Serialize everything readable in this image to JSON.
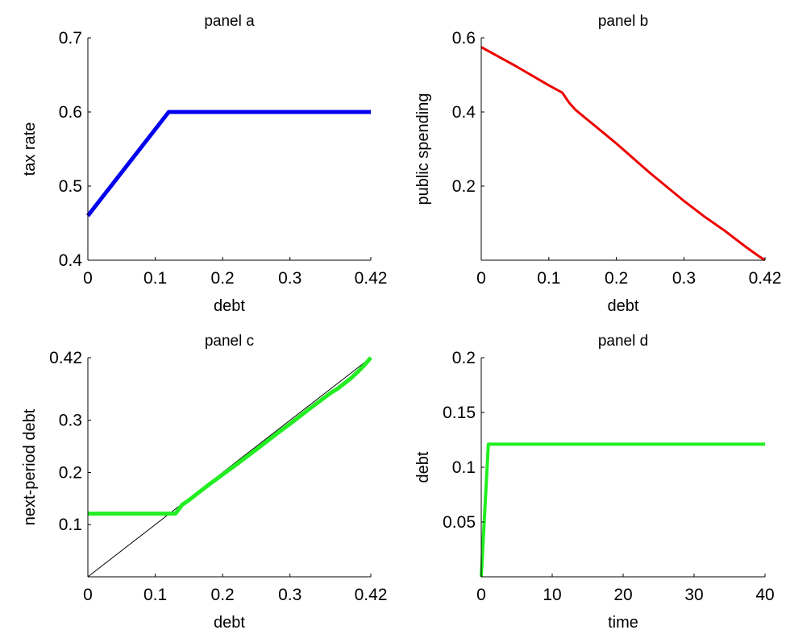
{
  "chart_data": [
    {
      "type": "line",
      "title": "panel a",
      "xlabel": "debt",
      "ylabel": "tax rate",
      "xlim": [
        0,
        0.42
      ],
      "ylim": [
        0.4,
        0.7
      ],
      "xticks": [
        0,
        0.1,
        0.2,
        0.3,
        0.42
      ],
      "xtick_labels": [
        "0",
        "0.1",
        "0.2",
        "0.3",
        "0.42"
      ],
      "yticks": [
        0.4,
        0.5,
        0.6,
        0.7
      ],
      "ytick_labels": [
        "0.4",
        "0.5",
        "0.6",
        "0.7"
      ],
      "grid": false,
      "series": [
        {
          "color": "#0000ee",
          "width": 5,
          "x": [
            0,
            0.12,
            0.42
          ],
          "y": [
            0.46,
            0.6,
            0.6
          ]
        }
      ]
    },
    {
      "type": "line",
      "title": "panel b",
      "xlabel": "debt",
      "ylabel": "public spending",
      "xlim": [
        0,
        0.42
      ],
      "ylim": [
        0,
        0.6
      ],
      "xticks": [
        0,
        0.1,
        0.2,
        0.3,
        0.42
      ],
      "xtick_labels": [
        "0",
        "0.1",
        "0.2",
        "0.3",
        "0.42"
      ],
      "yticks": [
        0.2,
        0.4,
        0.6
      ],
      "ytick_labels": [
        "0.2",
        "0.4",
        "0.6"
      ],
      "grid": false,
      "series": [
        {
          "color": "#ee0000",
          "width": 3,
          "x": [
            0,
            0.05,
            0.1,
            0.12,
            0.13,
            0.14,
            0.15,
            0.16,
            0.18,
            0.2,
            0.25,
            0.3,
            0.33,
            0.36,
            0.39,
            0.4,
            0.41,
            0.42
          ],
          "y": [
            0.575,
            0.525,
            0.472,
            0.452,
            0.425,
            0.405,
            0.39,
            0.375,
            0.345,
            0.315,
            0.235,
            0.16,
            0.118,
            0.08,
            0.038,
            0.025,
            0.012,
            0.0
          ]
        }
      ]
    },
    {
      "type": "line",
      "title": "panel c",
      "xlabel": "debt",
      "ylabel": "next-period debt",
      "xlim": [
        0,
        0.42
      ],
      "ylim": [
        0,
        0.42
      ],
      "xticks": [
        0,
        0.1,
        0.2,
        0.3,
        0.42
      ],
      "xtick_labels": [
        "0",
        "0.1",
        "0.2",
        "0.3",
        "0.42"
      ],
      "yticks": [
        0.1,
        0.2,
        0.3,
        0.42
      ],
      "ytick_labels": [
        "0.1",
        "0.2",
        "0.3",
        "0.42"
      ],
      "grid": false,
      "series": [
        {
          "color": "#000000",
          "width": 1,
          "x": [
            0,
            0.42
          ],
          "y": [
            0,
            0.42
          ]
        },
        {
          "color": "#22ee22",
          "width": 5,
          "x": [
            0,
            0.13,
            0.14,
            0.15,
            0.16,
            0.17,
            0.18,
            0.2,
            0.22,
            0.25,
            0.28,
            0.3,
            0.33,
            0.36,
            0.37,
            0.38,
            0.39,
            0.4,
            0.41,
            0.42
          ],
          "y": [
            0.121,
            0.121,
            0.138,
            0.147,
            0.157,
            0.167,
            0.177,
            0.196,
            0.215,
            0.244,
            0.274,
            0.293,
            0.323,
            0.352,
            0.36,
            0.37,
            0.38,
            0.392,
            0.405,
            0.42
          ]
        }
      ]
    },
    {
      "type": "line",
      "title": "panel d",
      "xlabel": "time",
      "ylabel": "debt",
      "xlim": [
        0,
        40
      ],
      "ylim": [
        0,
        0.2
      ],
      "xticks": [
        0,
        10,
        20,
        30,
        40
      ],
      "xtick_labels": [
        "0",
        "10",
        "20",
        "30",
        "40"
      ],
      "yticks": [
        0.05,
        0.1,
        0.15,
        0.2
      ],
      "ytick_labels": [
        "0.05",
        "0.1",
        "0.15",
        "0.2"
      ],
      "grid": false,
      "series": [
        {
          "color": "#22ee22",
          "width": 4,
          "x": [
            0,
            1,
            40
          ],
          "y": [
            0,
            0.121,
            0.121
          ]
        }
      ]
    }
  ]
}
